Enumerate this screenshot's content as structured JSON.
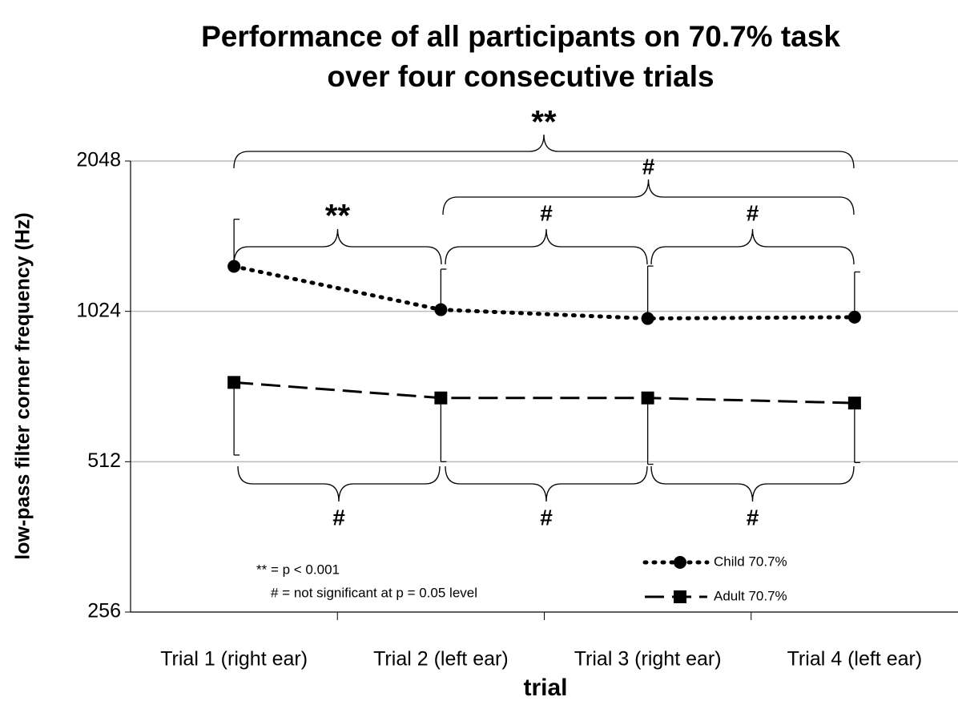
{
  "chart_data": {
    "type": "line",
    "title": [
      "Performance of all participants on 70.7% task",
      "over four consecutive trials"
    ],
    "xlabel": "trial",
    "ylabel": "low-pass filter corner frequency (Hz)",
    "categories": [
      "Trial 1 (right ear)",
      "Trial 2 (left ear)",
      "Trial 3 (right ear)",
      "Trial 4 (left ear)"
    ],
    "yscale": "log",
    "ylim": [
      256,
      2048
    ],
    "yticks": [
      256,
      512,
      1024,
      2048
    ],
    "grid": true,
    "legend": "lower right",
    "series": [
      {
        "name": "Child 70.7%",
        "color": "#000000",
        "dash": "dotted",
        "marker": "circle",
        "error_direction": "up",
        "values": [
          1260,
          1032,
          991,
          997
        ],
        "errors": [
          306,
          212,
          271,
          231
        ]
      },
      {
        "name": "Adult 70.7%",
        "color": "#000000",
        "dash": "dashed",
        "marker": "square",
        "error_direction": "down",
        "values": [
          738,
          687,
          687,
          671
        ],
        "errors": [
          210,
          175,
          181,
          161
        ]
      }
    ],
    "annotations": [
      "**",
      "#",
      "**",
      "#",
      "#",
      "#",
      "#",
      "#"
    ],
    "notes": [
      "** = p < 0.001",
      "# = not significant at p = 0.05 level"
    ]
  }
}
